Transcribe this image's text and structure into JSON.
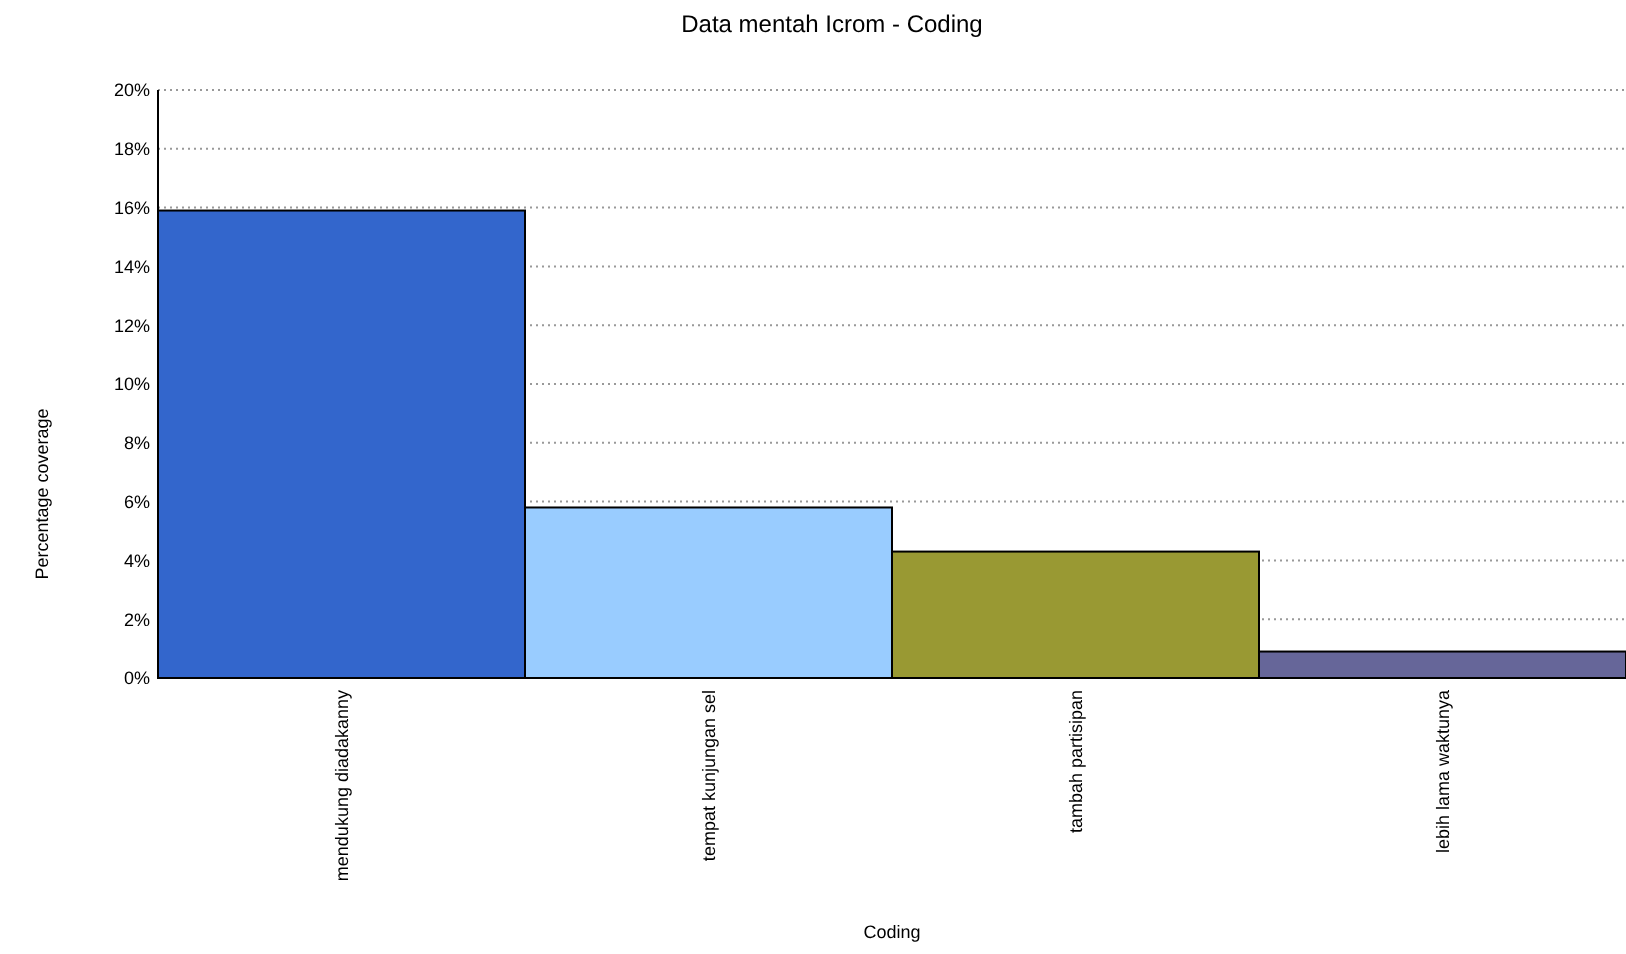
{
  "chart_data": {
    "type": "bar",
    "title": "Data mentah Icrom - Coding",
    "xlabel": "Coding",
    "ylabel": "Percentage coverage",
    "categories": [
      "mendukung diadakanny",
      "tempat kunjungan sel",
      "tambah partisipan",
      "lebih lama waktunya"
    ],
    "values": [
      15.9,
      5.8,
      4.3,
      0.9
    ],
    "colors": [
      "#3366cc",
      "#99ccff",
      "#999933",
      "#666699"
    ],
    "ylim": [
      0,
      20
    ],
    "yticks": [
      {
        "value": 0,
        "label": "0%"
      },
      {
        "value": 2,
        "label": "2%"
      },
      {
        "value": 4,
        "label": "4%"
      },
      {
        "value": 6,
        "label": "6%"
      },
      {
        "value": 8,
        "label": "8%"
      },
      {
        "value": 10,
        "label": "10%"
      },
      {
        "value": 12,
        "label": "12%"
      },
      {
        "value": 14,
        "label": "14%"
      },
      {
        "value": 16,
        "label": "16%"
      },
      {
        "value": 18,
        "label": "18%"
      },
      {
        "value": 20,
        "label": "20%"
      }
    ],
    "grid": "y"
  }
}
